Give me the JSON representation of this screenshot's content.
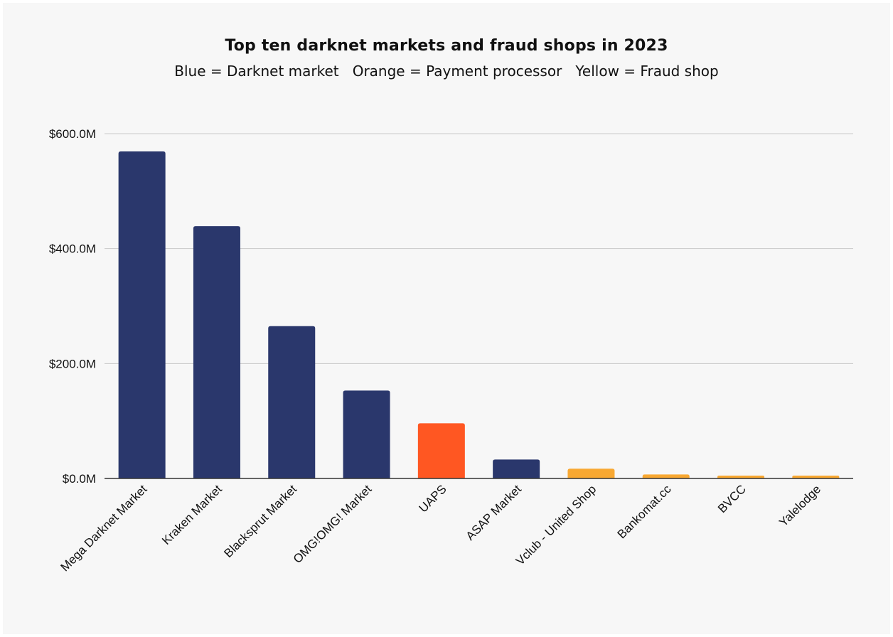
{
  "chart_data": {
    "type": "bar",
    "title": "Top ten darknet markets and fraud shops in 2023",
    "subtitle": "Blue = Darknet market   Orange = Payment processor   Yellow = Fraud shop",
    "xlabel": "",
    "ylabel": "",
    "ylim": [
      0,
      600
    ],
    "yticks": [
      0,
      200,
      400,
      600
    ],
    "ytick_labels": [
      "$0.0M",
      "$200.0M",
      "$400.0M",
      "$600.0M"
    ],
    "grid": true,
    "categories": [
      "Mega Darknet Market",
      "Kraken Market",
      "Blacksprut Market",
      "OMG!OMG! Market",
      "UAPS",
      "ASAP Market",
      "Vclub - United Shop",
      "Bankomat.cc",
      "BVCC",
      "Yalelodge"
    ],
    "values": [
      569,
      439,
      265,
      153,
      96,
      33,
      17,
      7,
      5,
      5
    ],
    "bar_types": [
      "Darknet market",
      "Darknet market",
      "Darknet market",
      "Darknet market",
      "Payment processor",
      "Darknet market",
      "Fraud shop",
      "Fraud shop",
      "Fraud shop",
      "Fraud shop"
    ],
    "colors": {
      "Darknet market": "#2a376c",
      "Payment processor": "#ff5722",
      "Fraud shop": "#f8a832"
    }
  }
}
